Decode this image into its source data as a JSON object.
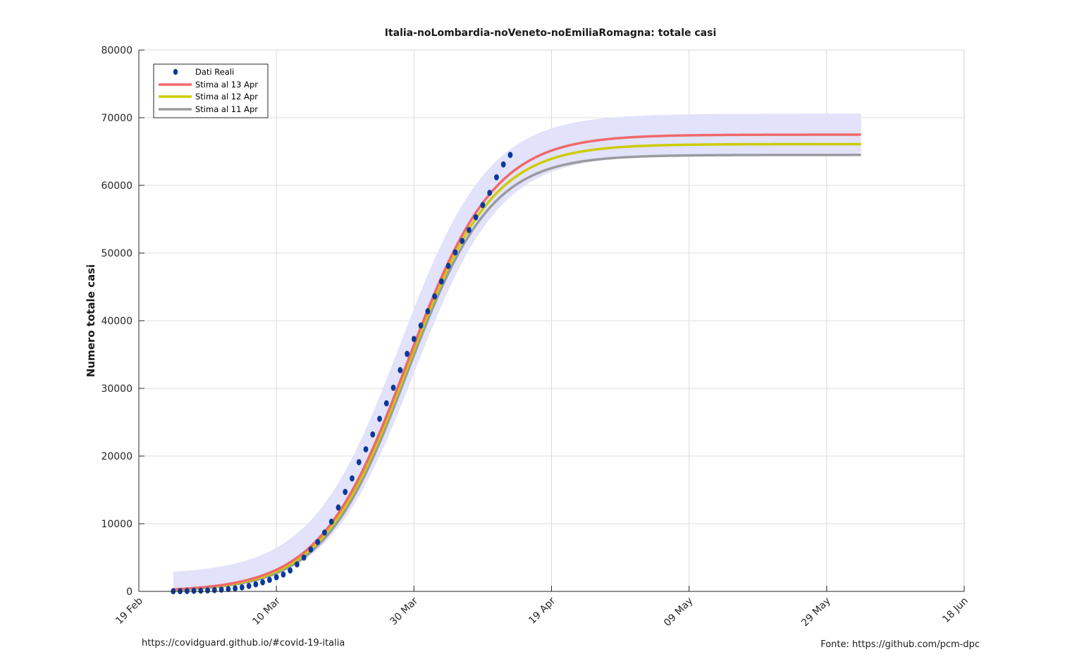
{
  "footer": {
    "left": "https://covidguard.github.io/#covid-19-italia",
    "right": "Fonte: https://github.com/pcm-dpc"
  },
  "chart_data": {
    "type": "line",
    "title": "Italia-noLombardia-noVeneto-noEmiliaRomagna: totale casi",
    "xlabel": "",
    "ylabel": "Numero totale casi",
    "x_axis": {
      "type": "date",
      "range": [
        "2020-02-19",
        "2020-06-18"
      ],
      "ticks": [
        "2020-02-19",
        "2020-03-10",
        "2020-03-30",
        "2020-04-19",
        "2020-05-09",
        "2020-05-29",
        "2020-06-18"
      ],
      "tick_labels": [
        "19 Feb",
        "10 Mar",
        "30 Mar",
        "19 Apr",
        "09 May",
        "29 May",
        "18 Jun"
      ]
    },
    "y_axis": {
      "range": [
        0,
        80000
      ],
      "ticks": [
        0,
        10000,
        20000,
        30000,
        40000,
        50000,
        60000,
        70000,
        80000
      ],
      "tick_labels": [
        "0",
        "10000",
        "20000",
        "30000",
        "40000",
        "50000",
        "60000",
        "70000",
        "80000"
      ]
    },
    "grid": true,
    "legend_position": "top-left",
    "colors": {
      "band": "#e2e2fa",
      "dati_reali": "#0a3a9a",
      "stima_13": "#f0686b",
      "stima_12": "#cccc00",
      "stima_11": "#9a9aa0",
      "grid": "#dcdcdc",
      "axis": "#262626"
    },
    "series": [
      {
        "name": "Dati Reali",
        "kind": "markers",
        "x": [
          "2020-02-24",
          "2020-02-25",
          "2020-02-26",
          "2020-02-27",
          "2020-02-28",
          "2020-02-29",
          "2020-03-01",
          "2020-03-02",
          "2020-03-03",
          "2020-03-04",
          "2020-03-05",
          "2020-03-06",
          "2020-03-07",
          "2020-03-08",
          "2020-03-09",
          "2020-03-10",
          "2020-03-11",
          "2020-03-12",
          "2020-03-13",
          "2020-03-14",
          "2020-03-15",
          "2020-03-16",
          "2020-03-17",
          "2020-03-18",
          "2020-03-19",
          "2020-03-20",
          "2020-03-21",
          "2020-03-22",
          "2020-03-23",
          "2020-03-24",
          "2020-03-25",
          "2020-03-26",
          "2020-03-27",
          "2020-03-28",
          "2020-03-29",
          "2020-03-30",
          "2020-03-31",
          "2020-04-01",
          "2020-04-02",
          "2020-04-03",
          "2020-04-04",
          "2020-04-05",
          "2020-04-06",
          "2020-04-07",
          "2020-04-08",
          "2020-04-09",
          "2020-04-10",
          "2020-04-11",
          "2020-04-12",
          "2020-04-13"
        ],
        "y": [
          30,
          40,
          60,
          90,
          120,
          150,
          200,
          260,
          350,
          450,
          600,
          800,
          1050,
          1350,
          1700,
          2100,
          2500,
          3100,
          4000,
          5000,
          6200,
          7300,
          8700,
          10300,
          12400,
          14700,
          16700,
          19100,
          21000,
          23200,
          25500,
          27800,
          30100,
          32700,
          35100,
          37300,
          39300,
          41400,
          43600,
          45800,
          48100,
          50100,
          51800,
          53400,
          55300,
          57100,
          58900,
          61200,
          63100,
          64500
        ]
      },
      {
        "name": "Stima al 13 Apr",
        "kind": "line",
        "model": "logistic",
        "params": {
          "K": 67500,
          "midpoint": "2020-03-29",
          "rate_per_day": 0.158
        },
        "x_end": "2020-06-03",
        "band": {
          "upper": {
            "K": 70600,
            "midpoint": "2020-03-28",
            "rate_per_day": 0.155,
            "offset": 2500
          },
          "lower": {
            "K": 64500,
            "midpoint": "2020-03-30",
            "rate_per_day": 0.16
          }
        }
      },
      {
        "name": "Stima al 12 Apr",
        "kind": "line",
        "model": "logistic",
        "params": {
          "K": 66100,
          "midpoint": "2020-03-29",
          "rate_per_day": 0.161
        },
        "x_end": "2020-06-03"
      },
      {
        "name": "Stima al 11 Apr",
        "kind": "line",
        "model": "logistic",
        "params": {
          "K": 64500,
          "midpoint": "2020-03-29",
          "rate_per_day": 0.165
        },
        "x_end": "2020-06-03"
      }
    ]
  }
}
